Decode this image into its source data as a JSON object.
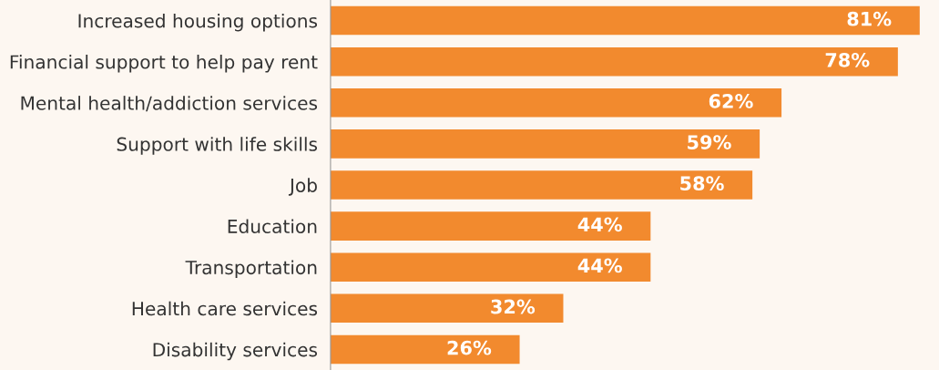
{
  "chart_data": {
    "type": "bar",
    "orientation": "horizontal",
    "categories": [
      "Increased housing options",
      "Financial support to help pay rent",
      "Mental health/addiction services",
      "Support with life skills",
      "Job",
      "Education",
      "Transportation",
      "Health care services",
      "Disability services"
    ],
    "values": [
      81,
      78,
      62,
      59,
      58,
      44,
      44,
      32,
      26
    ],
    "value_labels": [
      "81%",
      "78%",
      "62%",
      "59%",
      "58%",
      "44%",
      "44%",
      "32%",
      "26%"
    ],
    "color": "#f28a2e",
    "grid": false,
    "legend": false
  }
}
